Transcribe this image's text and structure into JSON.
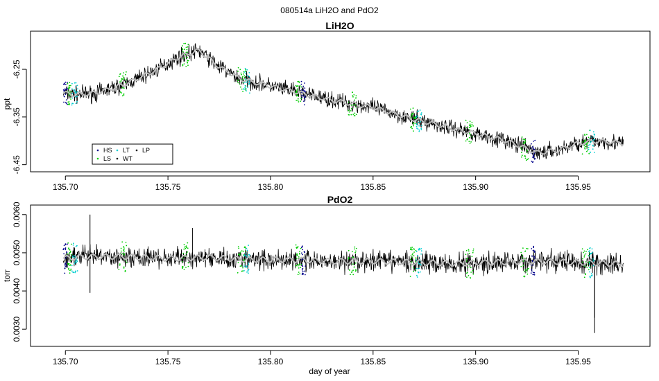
{
  "figure": {
    "suptitle": "080514a   LiH2O and PdO2",
    "xlabel": "day of year"
  },
  "colors": {
    "raw": "#000000",
    "smooth": "#bebebe",
    "HS": "#00008b",
    "LS": "#00cd00",
    "LT": "#00ced1",
    "WT": "#000000",
    "LP": "#000000"
  },
  "chart_data": [
    {
      "type": "line",
      "title": "LiH2O",
      "ylabel": "ppt",
      "xlim": [
        135.683,
        135.985
      ],
      "ylim": [
        -6.465,
        -6.17
      ],
      "x_ticks": [
        135.7,
        135.75,
        135.8,
        135.85,
        135.9,
        135.95
      ],
      "x_tick_labels": [
        "135.70",
        "135.75",
        "135.80",
        "135.85",
        "135.90",
        "135.95"
      ],
      "y_ticks": [
        -6.25,
        -6.35,
        -6.45
      ],
      "y_tick_labels": [
        "-6.25",
        "-6.35",
        "-6.45"
      ],
      "x_range_data": [
        135.699,
        135.972
      ],
      "noise_amplitude": 0.025,
      "trend": {
        "x": [
          135.699,
          135.705,
          135.715,
          135.73,
          135.745,
          135.755,
          135.765,
          135.775,
          135.785,
          135.8,
          135.815,
          135.83,
          135.85,
          135.87,
          135.885,
          135.9,
          135.915,
          135.93,
          135.94,
          135.95,
          135.96,
          135.972
        ],
        "y": [
          -6.3,
          -6.303,
          -6.3,
          -6.28,
          -6.25,
          -6.225,
          -6.21,
          -6.245,
          -6.27,
          -6.285,
          -6.3,
          -6.315,
          -6.33,
          -6.355,
          -6.37,
          -6.385,
          -6.4,
          -6.425,
          -6.42,
          -6.405,
          -6.4,
          -6.405
        ]
      },
      "series": [
        {
          "name": "HS",
          "segments": [
            [
              135.699,
              135.701
            ],
            [
              135.815,
              135.817
            ],
            [
              135.927,
              135.929
            ]
          ]
        },
        {
          "name": "LS",
          "segments": [
            [
              135.701,
              135.703
            ],
            [
              135.726,
              135.73
            ],
            [
              135.757,
              135.76
            ],
            [
              135.784,
              135.788
            ],
            [
              135.812,
              135.815
            ],
            [
              135.838,
              135.842
            ],
            [
              135.868,
              135.871
            ],
            [
              135.895,
              135.899
            ],
            [
              135.922,
              135.926
            ],
            [
              135.952,
              135.956
            ]
          ]
        },
        {
          "name": "LT",
          "segments": [
            [
              135.703,
              135.706
            ],
            [
              135.787,
              135.79
            ],
            [
              135.871,
              135.874
            ],
            [
              135.955,
              135.958
            ]
          ]
        },
        {
          "name": "WT",
          "segments": []
        },
        {
          "name": "LP",
          "segments": []
        }
      ],
      "legend": {
        "placement": "bottom-left",
        "entries": [
          "HS",
          "LT",
          "LP",
          "LS",
          "WT"
        ]
      }
    },
    {
      "type": "line",
      "title": "PdO2",
      "ylabel": "torr",
      "xlim": [
        135.683,
        135.985
      ],
      "ylim": [
        0.00255,
        0.00625
      ],
      "x_ticks": [
        135.7,
        135.75,
        135.8,
        135.85,
        135.9,
        135.95
      ],
      "x_tick_labels": [
        "135.70",
        "135.75",
        "135.80",
        "135.85",
        "135.90",
        "135.95"
      ],
      "y_ticks": [
        0.003,
        0.004,
        0.005,
        0.006
      ],
      "y_tick_labels": [
        "0.0030",
        "0.0040",
        "0.0050",
        "0.0060"
      ],
      "x_range_data": [
        135.699,
        135.972
      ],
      "noise_amplitude": 0.0004,
      "trend": {
        "x": [
          135.699,
          135.71,
          135.73,
          135.75,
          135.77,
          135.79,
          135.81,
          135.83,
          135.85,
          135.87,
          135.89,
          135.91,
          135.93,
          135.95,
          135.972
        ],
        "y": [
          0.00485,
          0.0049,
          0.0049,
          0.00485,
          0.00488,
          0.00482,
          0.00482,
          0.00478,
          0.00478,
          0.00475,
          0.00472,
          0.00475,
          0.00478,
          0.00475,
          0.0047
        ]
      },
      "spikes": [
        {
          "x": 135.712,
          "y": 0.006
        },
        {
          "x": 135.712,
          "y": 0.00395
        },
        {
          "x": 135.958,
          "y": 0.0029
        },
        {
          "x": 135.958,
          "y": 0.0033
        },
        {
          "x": 135.762,
          "y": 0.00565
        }
      ],
      "series": [
        {
          "name": "HS",
          "segments": [
            [
              135.699,
              135.701
            ],
            [
              135.815,
              135.817
            ],
            [
              135.927,
              135.929
            ]
          ]
        },
        {
          "name": "LS",
          "segments": [
            [
              135.701,
              135.703
            ],
            [
              135.726,
              135.73
            ],
            [
              135.757,
              135.76
            ],
            [
              135.784,
              135.788
            ],
            [
              135.812,
              135.815
            ],
            [
              135.838,
              135.842
            ],
            [
              135.868,
              135.871
            ],
            [
              135.895,
              135.899
            ],
            [
              135.922,
              135.926
            ],
            [
              135.952,
              135.956
            ]
          ]
        },
        {
          "name": "LT",
          "segments": [
            [
              135.703,
              135.706
            ],
            [
              135.787,
              135.79
            ],
            [
              135.871,
              135.874
            ],
            [
              135.955,
              135.958
            ]
          ]
        },
        {
          "name": "WT",
          "segments": []
        },
        {
          "name": "LP",
          "segments": []
        }
      ]
    }
  ]
}
